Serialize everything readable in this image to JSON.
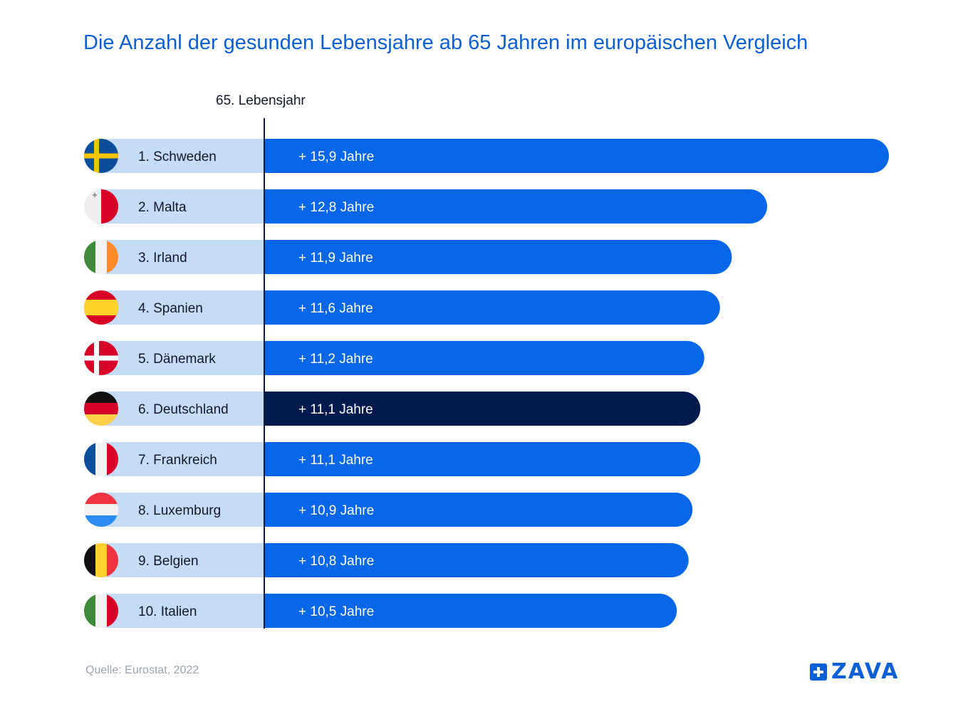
{
  "title": "Die Anzahl der gesunden Lebensjahre ab 65 Jahren im europäischen Vergleich",
  "axis_marker_label": "65. Lebensjahr",
  "source": "Quelle: Eurostat, 2022",
  "brand": {
    "name": "ZAVA",
    "color": "#0a5fd9"
  },
  "colors": {
    "bar": "#0866e8",
    "bar_highlight": "#001a4d",
    "label_background": "#c5dcf7",
    "axis_line": "#0d1b3e",
    "bar_text": "#ffffff",
    "label_text": "#111827"
  },
  "chart_data": {
    "type": "bar",
    "orientation": "horizontal",
    "highlight_category": "Deutschland",
    "categories": [
      "1. Schweden",
      "2. Malta",
      "3. Irland",
      "4. Spanien",
      "5. Dänemark",
      "6. Deutschland",
      "7. Frankreich",
      "8. Luxemburg",
      "9. Belgien",
      "10. Italien"
    ],
    "values": [
      15.9,
      12.8,
      11.9,
      11.6,
      11.2,
      11.1,
      11.1,
      10.9,
      10.8,
      10.5
    ],
    "value_labels": [
      "+ 15,9 Jahre",
      "+ 12,8 Jahre",
      "+ 11,9 Jahre",
      "+ 11,6 Jahre",
      "+ 11,2 Jahre",
      "+ 11,1 Jahre",
      "+ 11,1 Jahre",
      "+ 10,9 Jahre",
      "+ 10,8 Jahre",
      "+ 10,5 Jahre"
    ],
    "flags": [
      "sweden-flag-icon",
      "malta-flag-icon",
      "ireland-flag-icon",
      "spain-flag-icon",
      "denmark-flag-icon",
      "germany-flag-icon",
      "france-flag-icon",
      "luxembourg-flag-icon",
      "belgium-flag-icon",
      "italy-flag-icon"
    ],
    "highlighted": [
      false,
      false,
      false,
      false,
      false,
      true,
      false,
      false,
      false,
      false
    ]
  }
}
